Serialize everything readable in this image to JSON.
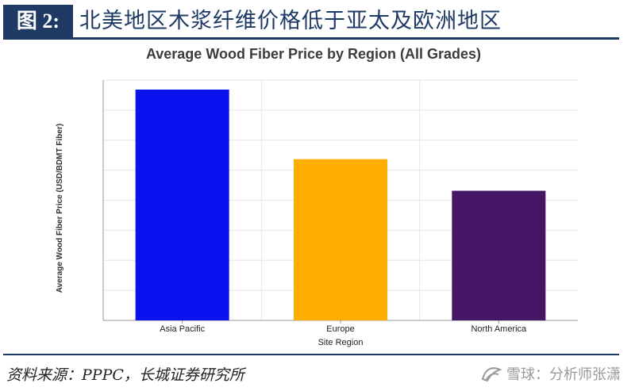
{
  "header": {
    "figure_label": "图 2:",
    "figure_title": "北美地区木浆纤维价格低于亚太及欧洲地区"
  },
  "footer": {
    "source": "资料来源：PPPC，长城证券研究所",
    "watermark": "雪球：分析师张潇"
  },
  "chart_data": {
    "type": "bar",
    "title": "Average Wood Fiber Price by Region (All Grades)",
    "xlabel": "Site Region",
    "ylabel": "Average Wood Fiber Price (USD/BDMT Fiber)",
    "categories": [
      "Asia Pacific",
      "Europe",
      "North America"
    ],
    "values": [
      7.3,
      5.1,
      4.1
    ],
    "colors": [
      "#0b12f0",
      "#fdae00",
      "#451566"
    ],
    "ylim": [
      0,
      7.6
    ],
    "y_tick_labels_visible": false,
    "grid": true,
    "legend": "none"
  }
}
